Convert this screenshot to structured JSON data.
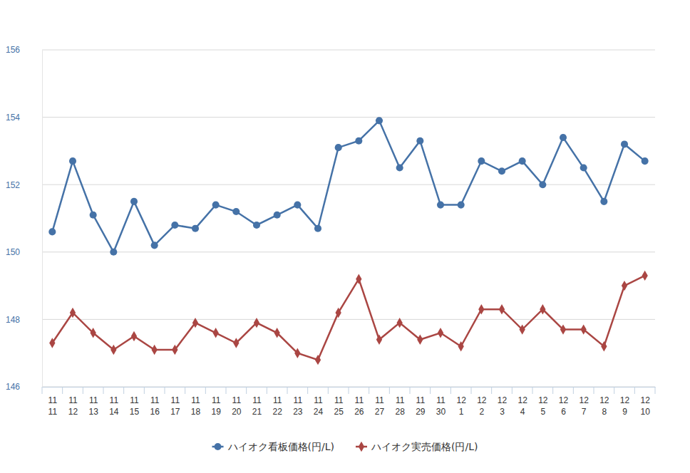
{
  "chart_data": {
    "type": "line",
    "categories": [
      "11 11",
      "11 12",
      "11 13",
      "11 14",
      "11 15",
      "11 16",
      "11 17",
      "11 18",
      "11 19",
      "11 20",
      "11 21",
      "11 22",
      "11 23",
      "11 24",
      "11 25",
      "11 26",
      "11 27",
      "11 28",
      "11 29",
      "11 30",
      "12 1",
      "12 2",
      "12 3",
      "12 4",
      "12 5",
      "12 6",
      "12 7",
      "12 8",
      "12 9",
      "12 10"
    ],
    "series": [
      {
        "name": "ハイオク看板価格(円/L)",
        "color": "#4572a7",
        "marker": "circle",
        "values": [
          150.6,
          152.7,
          151.1,
          150.0,
          151.5,
          150.2,
          150.8,
          150.7,
          151.4,
          151.2,
          150.8,
          151.1,
          151.4,
          150.7,
          153.1,
          153.3,
          153.9,
          152.5,
          153.3,
          151.4,
          151.4,
          152.7,
          152.4,
          152.7,
          152.0,
          153.4,
          152.5,
          151.5,
          153.2,
          152.7
        ]
      },
      {
        "name": "ハイオク実売価格(円/L)",
        "color": "#aa4643",
        "marker": "diamond",
        "values": [
          147.3,
          148.2,
          147.6,
          147.1,
          147.5,
          147.1,
          147.1,
          147.9,
          147.6,
          147.3,
          147.9,
          147.6,
          147.0,
          146.8,
          148.2,
          149.2,
          147.4,
          147.9,
          147.4,
          147.6,
          147.2,
          148.3,
          148.3,
          147.7,
          148.3,
          147.7,
          147.7,
          147.2,
          149.0,
          149.3
        ]
      }
    ],
    "ylim": [
      146,
      156
    ],
    "yticks": [
      146,
      148,
      150,
      152,
      154,
      156
    ],
    "grid": true,
    "legend": "bottom"
  }
}
